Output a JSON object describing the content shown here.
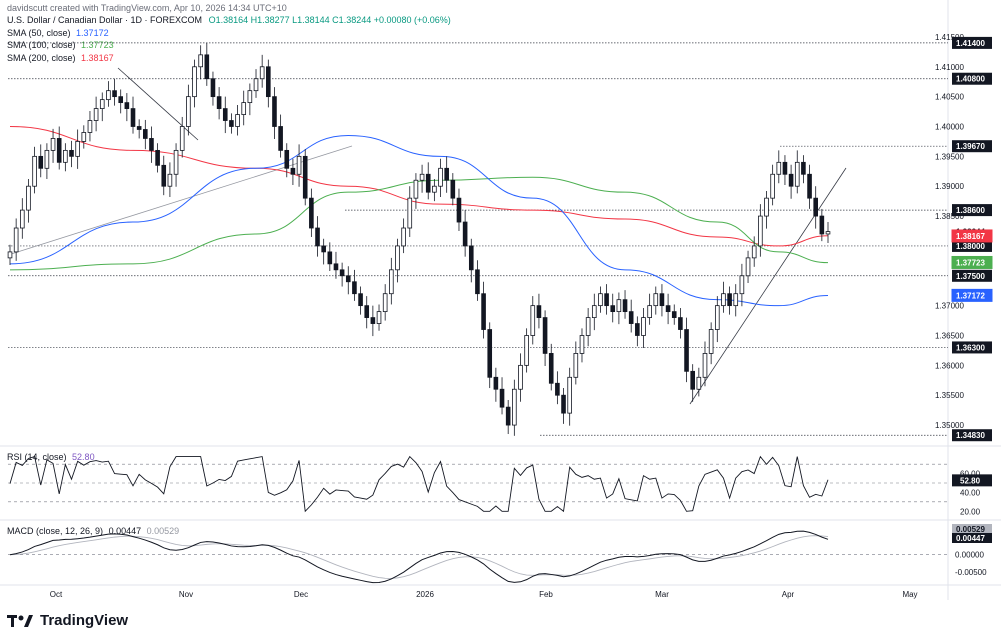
{
  "header": {
    "credit": "davidscutt created with TradingView.com, Apr 10, 2026 14:34 UTC+10",
    "title": "U.S. Dollar / Canadian Dollar · 1D · FOREXCOM",
    "ohlc": "O1.38164 H1.38277 L1.38144 C1.38244 +0.00080 (+0.06%)"
  },
  "sma_legend": [
    {
      "label": "SMA (50, close)",
      "value": "1.37172",
      "color": "#2962ff"
    },
    {
      "label": "SMA (100, close)",
      "value": "1.37723",
      "color": "#4caf50"
    },
    {
      "label": "SMA (200, close)",
      "value": "1.38167",
      "color": "#f23645"
    }
  ],
  "rsi_legend": {
    "label": "RSI (14, close)",
    "value": "52.80"
  },
  "macd_legend": {
    "label": "MACD (close, 12, 26, 9)",
    "value1": "0.00447",
    "value2": "0.00529"
  },
  "brand": "TradingView",
  "chart_data": {
    "type": "candlestick",
    "symbol": "USD/CAD",
    "price_axis": {
      "range": [
        1.3475,
        1.4175
      ],
      "ticks": [
        "1.41500",
        "1.41000",
        "1.40500",
        "1.40000",
        "1.39500",
        "1.39000",
        "1.38500",
        "1.37000",
        "1.36500",
        "1.36000",
        "1.35500",
        "1.35000"
      ]
    },
    "time_axis": {
      "labels": [
        "Oct",
        "Nov",
        "Dec",
        "2026",
        "Feb",
        "Mar",
        "Apr",
        "May"
      ]
    },
    "horizontal_levels": [
      {
        "price": 1.414,
        "label": "1.41400"
      },
      {
        "price": 1.408,
        "label": "1.40800"
      },
      {
        "price": 1.3967,
        "label": "1.39670"
      },
      {
        "price": 1.386,
        "label": "1.38600"
      },
      {
        "price": 1.38,
        "label": "1.38000"
      },
      {
        "price": 1.375,
        "label": "1.37500"
      },
      {
        "price": 1.363,
        "label": "1.36300"
      },
      {
        "price": 1.3483,
        "label": "1.34830"
      }
    ],
    "price_labels": [
      {
        "value": "1.38244",
        "kind": "last"
      },
      {
        "value": "1.38167",
        "kind": "sma200",
        "color": "#f23645"
      },
      {
        "value": "1.37723",
        "kind": "sma100",
        "color": "#4caf50"
      },
      {
        "value": "1.37172",
        "kind": "sma50",
        "color": "#2962ff"
      }
    ],
    "closes": [
      1.379,
      1.383,
      1.386,
      1.39,
      1.395,
      1.393,
      1.396,
      1.398,
      1.394,
      1.396,
      1.395,
      1.3975,
      1.399,
      1.401,
      1.403,
      1.4045,
      1.406,
      1.405,
      1.404,
      1.403,
      1.4,
      1.3995,
      1.398,
      1.396,
      1.3935,
      1.39,
      1.392,
      1.396,
      1.4,
      1.405,
      1.41,
      1.412,
      1.408,
      1.405,
      1.403,
      1.401,
      1.4,
      1.402,
      1.404,
      1.406,
      1.408,
      1.41,
      1.405,
      1.4,
      1.396,
      1.393,
      1.392,
      1.395,
      1.388,
      1.383,
      1.38,
      1.379,
      1.377,
      1.376,
      1.375,
      1.374,
      1.372,
      1.37,
      1.368,
      1.367,
      1.369,
      1.372,
      1.376,
      1.38,
      1.383,
      1.388,
      1.391,
      1.392,
      1.389,
      1.39,
      1.393,
      1.391,
      1.388,
      1.384,
      1.38,
      1.376,
      1.372,
      1.366,
      1.358,
      1.356,
      1.353,
      1.35,
      1.356,
      1.36,
      1.365,
      1.37,
      1.368,
      1.362,
      1.357,
      1.355,
      1.352,
      1.358,
      1.362,
      1.365,
      1.368,
      1.37,
      1.372,
      1.37,
      1.369,
      1.371,
      1.369,
      1.367,
      1.365,
      1.368,
      1.37,
      1.372,
      1.37,
      1.369,
      1.368,
      1.366,
      1.359,
      1.356,
      1.358,
      1.362,
      1.366,
      1.37,
      1.372,
      1.37,
      1.372,
      1.375,
      1.378,
      1.38,
      1.385,
      1.388,
      1.392,
      1.394,
      1.392,
      1.39,
      1.394,
      1.392,
      1.388,
      1.385,
      1.382,
      1.3824
    ],
    "sma50_points": [
      [
        0,
        1.377
      ],
      [
        20,
        1.384
      ],
      [
        40,
        1.393
      ],
      [
        55,
        1.3985
      ],
      [
        70,
        1.395
      ],
      [
        85,
        1.388
      ],
      [
        100,
        1.376
      ],
      [
        115,
        1.371
      ],
      [
        125,
        1.37
      ],
      [
        133,
        1.3717
      ]
    ],
    "sma100_points": [
      [
        0,
        1.376
      ],
      [
        20,
        1.377
      ],
      [
        40,
        1.382
      ],
      [
        55,
        1.389
      ],
      [
        70,
        1.391
      ],
      [
        85,
        1.3915
      ],
      [
        100,
        1.389
      ],
      [
        115,
        1.384
      ],
      [
        125,
        1.379
      ],
      [
        133,
        1.3772
      ]
    ],
    "sma200_points": [
      [
        0,
        1.4
      ],
      [
        20,
        1.396
      ],
      [
        40,
        1.393
      ],
      [
        55,
        1.39
      ],
      [
        70,
        1.387
      ],
      [
        85,
        1.386
      ],
      [
        100,
        1.3845
      ],
      [
        115,
        1.3815
      ],
      [
        125,
        1.38
      ],
      [
        133,
        1.3817
      ]
    ],
    "rsi": {
      "ticks": [
        "60.00",
        "40.00",
        "20.00"
      ],
      "value_label": "52.80",
      "levels": [
        70,
        50,
        30
      ],
      "range": [
        15,
        85
      ]
    },
    "macd": {
      "ticks": [
        "0.00000",
        "-0.00500"
      ],
      "value_labels": [
        "0.00529",
        "0.00447"
      ],
      "range": [
        -0.008,
        0.009
      ]
    }
  }
}
